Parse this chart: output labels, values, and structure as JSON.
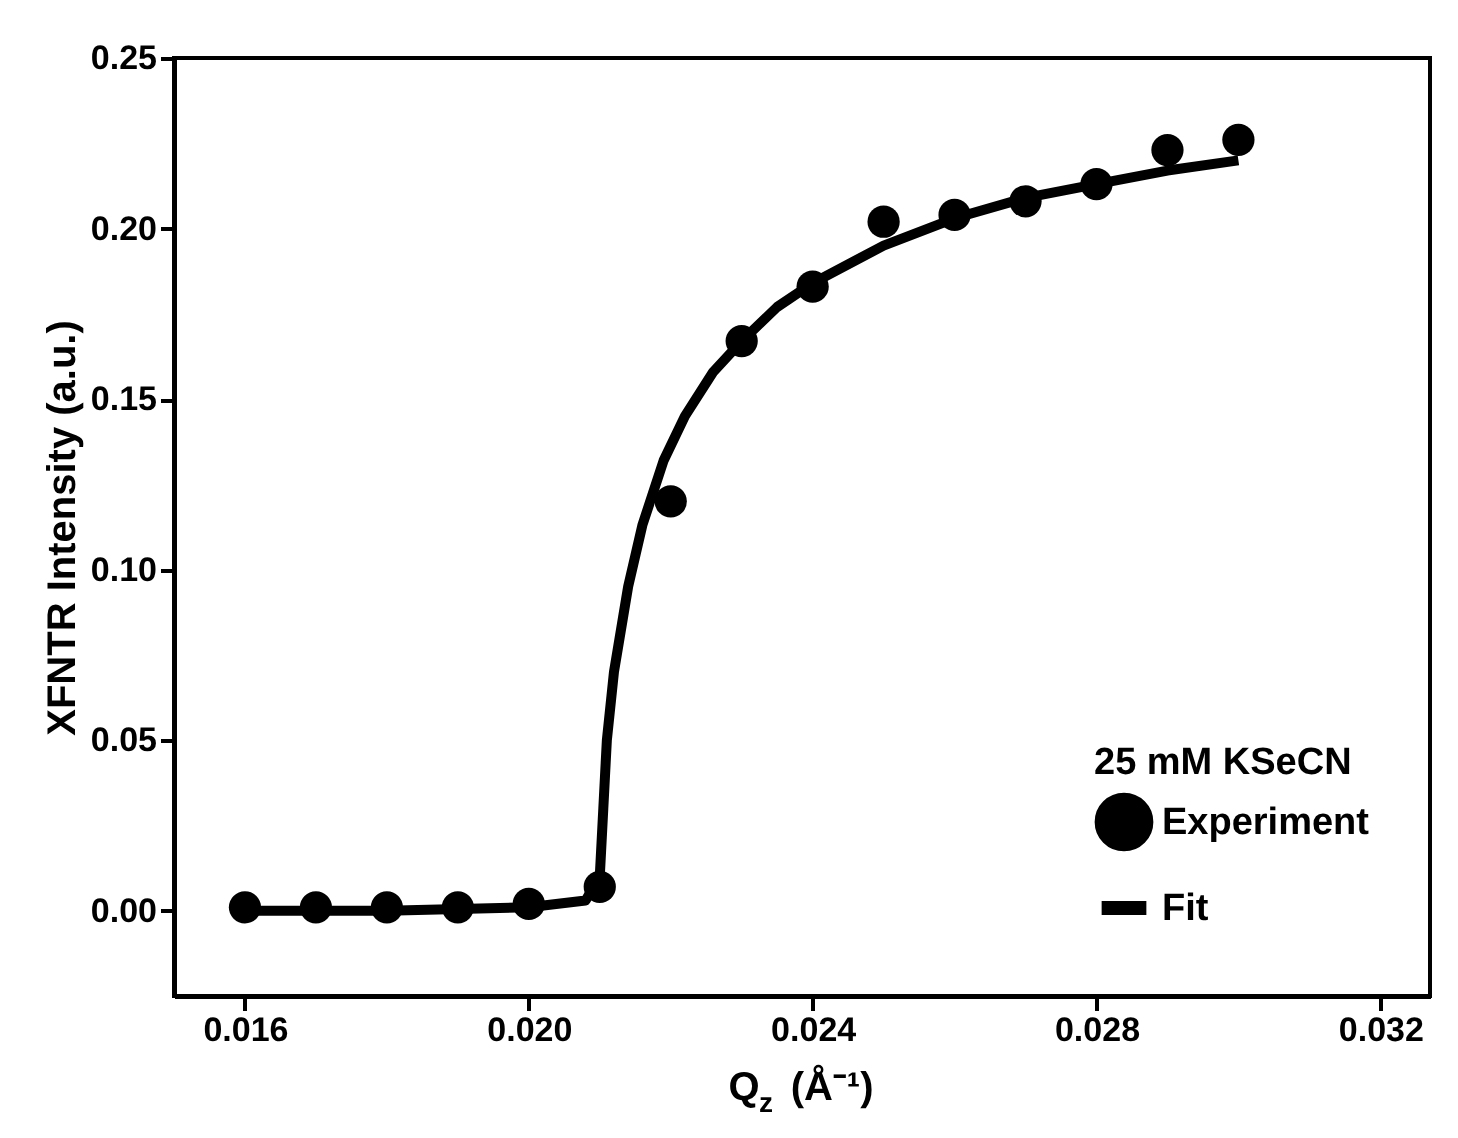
{
  "chart_data": {
    "type": "scatter",
    "xlabel": "Q$_{z}$ (Å⁻¹)",
    "ylabel": "XFNTR Intensity (a.u.)",
    "legend_title": "25 mM KSeCN",
    "legend": "bottom right",
    "grid": false,
    "xlim": [
      0.015,
      0.0327
    ],
    "ylim": [
      -0.025,
      0.25
    ],
    "xticks": [
      0.016,
      {
        "value": 0.02,
        "label": "0.020"
      },
      0.024,
      0.028,
      0.032
    ],
    "yticks": [
      {
        "value": 0,
        "label": "0.00"
      },
      0.05,
      {
        "value": 0.1,
        "label": "0.10"
      },
      0.15,
      {
        "value": 0.2,
        "label": "0.20"
      },
      0.25
    ],
    "series": [
      {
        "name": "Experiment",
        "marker": "circle",
        "color": "#000000",
        "x": [
          0.016,
          0.017,
          0.018,
          0.019,
          0.02,
          0.021,
          0.022,
          0.023,
          0.024,
          0.025,
          0.026,
          0.027,
          0.028,
          0.029,
          0.03
        ],
        "values": [
          0.001,
          0.001,
          0.001,
          0.001,
          0.002,
          0.007,
          0.12,
          0.167,
          0.183,
          0.202,
          0.204,
          0.208,
          0.213,
          0.223,
          0.226
        ]
      },
      {
        "name": "Fit",
        "type": "line",
        "line_style": "solid",
        "color": "#000000",
        "x": [
          0.016,
          0.018,
          0.02,
          0.0208,
          0.021,
          0.02105,
          0.0211,
          0.0212,
          0.0214,
          0.0216,
          0.0219,
          0.0222,
          0.0226,
          0.023,
          0.0235,
          0.024,
          0.025,
          0.026,
          0.027,
          0.028,
          0.029,
          0.03
        ],
        "values": [
          0,
          0,
          0.001,
          0.003,
          0.01,
          0.03,
          0.05,
          0.07,
          0.095,
          0.113,
          0.132,
          0.145,
          0.158,
          0.167,
          0.177,
          0.184,
          0.195,
          0.203,
          0.209,
          0.213,
          0.217,
          0.22
        ]
      }
    ]
  }
}
